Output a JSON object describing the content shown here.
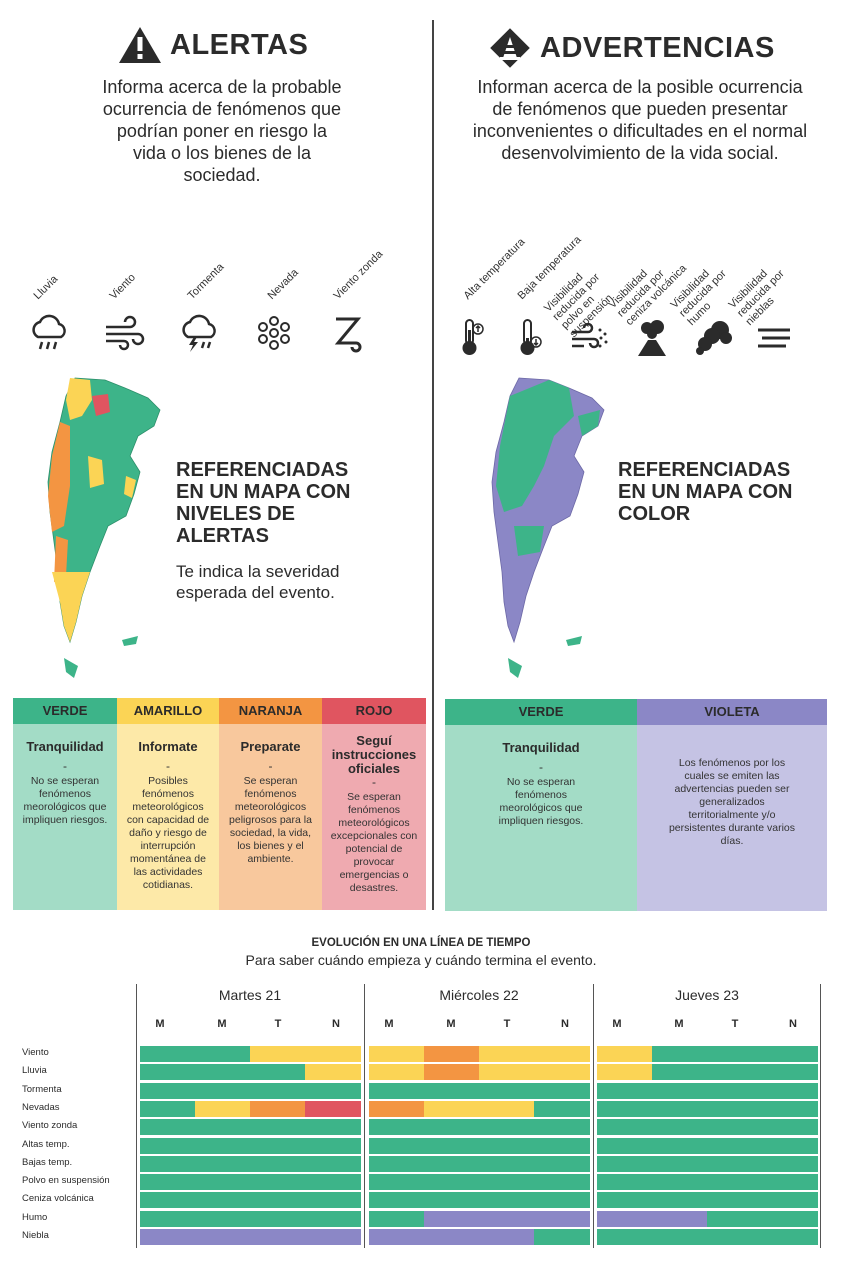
{
  "colors": {
    "verde": "#3db489",
    "amarillo": "#fbd455",
    "naranja": "#f39542",
    "rojo": "#e05560",
    "violeta": "#8b87c6"
  },
  "alertas": {
    "title": "ALERTAS",
    "icon": "warning-triangle-icon",
    "description": "Informa acerca de la probable ocurrencia de fenómenos que podrían poner en riesgo la vida o los bienes de la sociedad.",
    "phenomena": [
      {
        "label": "Lluvia",
        "icon": "rain-cloud-icon"
      },
      {
        "label": "Viento",
        "icon": "wind-icon"
      },
      {
        "label": "Tormenta",
        "icon": "storm-cloud-icon"
      },
      {
        "label": "Nevada",
        "icon": "snowflake-icon"
      },
      {
        "label": "Viento zonda",
        "icon": "zonda-wind-icon"
      }
    ],
    "map_title": "REFERENCIADAS EN UN MAPA CON NIVELES DE ALERTAS",
    "map_sub": "Te indica la severidad esperada del evento.",
    "levels": [
      {
        "header": "VERDE",
        "name": "Tranquilidad",
        "dash": "-",
        "text": "No se esperan fenómenos meorológicos que impliquen riesgos."
      },
      {
        "header": "AMARILLO",
        "name": "Informate",
        "dash": "-",
        "text": "Posibles fenómenos meteorológicos con capacidad de daño y riesgo de interrupción momentánea de las actividades cotidianas."
      },
      {
        "header": "NARANJA",
        "name": "Preparate",
        "dash": "-",
        "text": "Se esperan fenómenos meteorológicos peligrosos para la sociedad, la vida, los bienes y el ambiente."
      },
      {
        "header": "ROJO",
        "name": "Seguí instrucciones oficiales",
        "dash": "-",
        "text": "Se esperan fenómenos meteorológicos excepcionales con potencial de provocar emergencias o desastres."
      }
    ]
  },
  "advertencias": {
    "title": "ADVERTENCIAS",
    "icon": "traffic-cone-icon",
    "description": "Informan acerca de la posible ocurrencia de fenómenos que pueden presentar inconvenientes o dificultades en el normal desenvolvimiento de la vida social.",
    "phenomena": [
      {
        "label": "Alta temperatura",
        "icon": "thermometer-high-icon"
      },
      {
        "label": "Baja temperatura",
        "icon": "thermometer-low-icon"
      },
      {
        "label": "Visibilidad reducida por polvo en suspensión",
        "icon": "dust-icon"
      },
      {
        "label": "Visibilidad reducida por ceniza volcánica",
        "icon": "volcano-icon"
      },
      {
        "label": "Visibilidad reducida por humo",
        "icon": "smoke-icon"
      },
      {
        "label": "Visibilidad reducida por nieblas",
        "icon": "fog-icon"
      }
    ],
    "map_title": "REFERENCIADAS EN UN MAPA CON COLOR",
    "levels": [
      {
        "header": "VERDE",
        "name": "Tranquilidad",
        "dash": "-",
        "text": "No se esperan fenómenos meorológicos que impliquen riesgos."
      },
      {
        "header": "VIOLETA",
        "name": "",
        "dash": "",
        "text": "Los fenómenos por los cuales se emiten las advertencias pueden ser generalizados territorialmente y/o persistentes durante varios días."
      }
    ]
  },
  "timeline": {
    "title": "EVOLUCIÓN EN UNA LÍNEA DE TIEMPO",
    "subtitle": "Para saber cuándo empieza y cuándo termina el evento.",
    "days": [
      "Martes 21",
      "Miércoles 22",
      "Jueves 23"
    ],
    "segments": [
      "M",
      "M",
      "T",
      "N"
    ],
    "rows": [
      {
        "label": "Viento",
        "cells": [
          "V",
          "V",
          "A",
          "A",
          "A",
          "N",
          "A",
          "A",
          "A",
          "V",
          "V",
          "V"
        ]
      },
      {
        "label": "Lluvia",
        "cells": [
          "V",
          "V",
          "V",
          "A",
          "A",
          "N",
          "A",
          "A",
          "A",
          "V",
          "V",
          "V"
        ]
      },
      {
        "label": "Tormenta",
        "cells": [
          "V",
          "V",
          "V",
          "V",
          "V",
          "V",
          "V",
          "V",
          "V",
          "V",
          "V",
          "V"
        ]
      },
      {
        "label": "Nevadas",
        "cells": [
          "V",
          "A",
          "N",
          "R",
          "N",
          "A",
          "A",
          "V",
          "V",
          "V",
          "V",
          "V"
        ]
      },
      {
        "label": "Viento zonda",
        "cells": [
          "V",
          "V",
          "V",
          "V",
          "V",
          "V",
          "V",
          "V",
          "V",
          "V",
          "V",
          "V"
        ]
      },
      {
        "label": "Altas temp.",
        "cells": [
          "V",
          "V",
          "V",
          "V",
          "V",
          "V",
          "V",
          "V",
          "V",
          "V",
          "V",
          "V"
        ]
      },
      {
        "label": "Bajas temp.",
        "cells": [
          "V",
          "V",
          "V",
          "V",
          "V",
          "V",
          "V",
          "V",
          "V",
          "V",
          "V",
          "V"
        ]
      },
      {
        "label": "Polvo en suspensión",
        "cells": [
          "V",
          "V",
          "V",
          "V",
          "V",
          "V",
          "V",
          "V",
          "V",
          "V",
          "V",
          "V"
        ]
      },
      {
        "label": "Ceniza volcánica",
        "cells": [
          "V",
          "V",
          "V",
          "V",
          "V",
          "V",
          "V",
          "V",
          "V",
          "V",
          "V",
          "V"
        ]
      },
      {
        "label": "Humo",
        "cells": [
          "V",
          "V",
          "V",
          "V",
          "V",
          "P",
          "P",
          "P",
          "P",
          "P",
          "V",
          "V"
        ]
      },
      {
        "label": "Niebla",
        "cells": [
          "P",
          "P",
          "P",
          "P",
          "P",
          "P",
          "P",
          "V",
          "V",
          "V",
          "V",
          "V"
        ]
      }
    ]
  }
}
